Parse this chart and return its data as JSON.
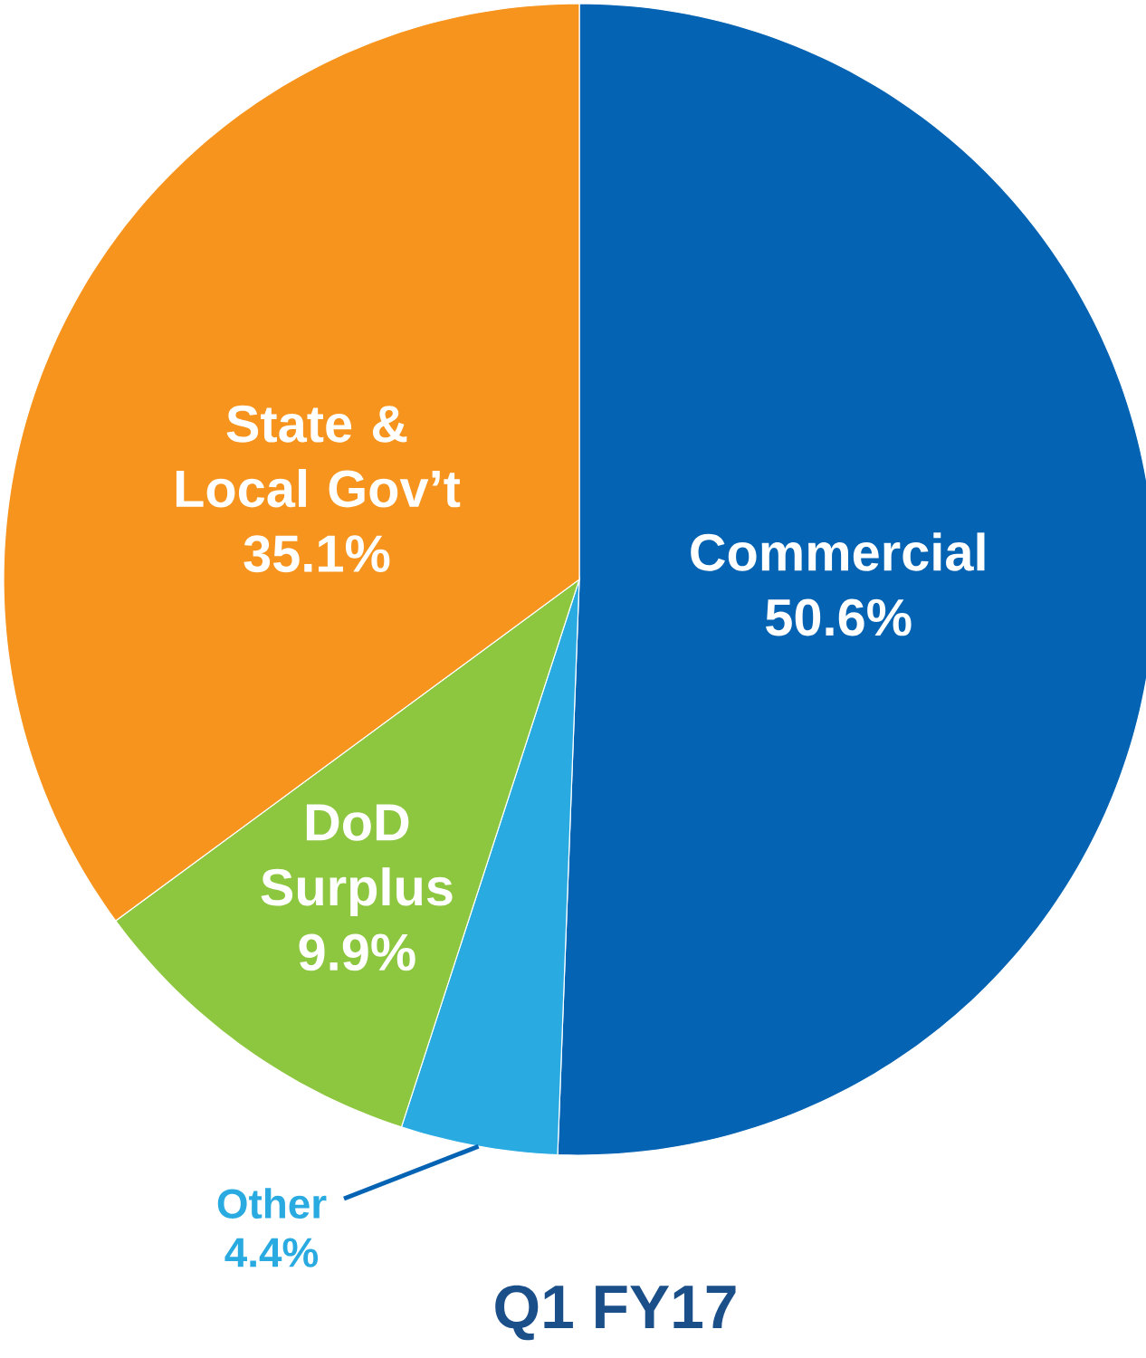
{
  "chart_data": {
    "type": "pie",
    "title": "Q1 FY17",
    "categories": [
      "Commercial",
      "Other",
      "DoD Surplus",
      "State & Local Gov’t"
    ],
    "values": [
      50.6,
      4.4,
      9.9,
      35.1
    ],
    "colors": [
      "#0563b3",
      "#29abe2",
      "#8dc63f",
      "#f7941d"
    ],
    "value_labels": [
      "50.6%",
      "4.4%",
      "9.9%",
      "35.1%"
    ]
  }
}
